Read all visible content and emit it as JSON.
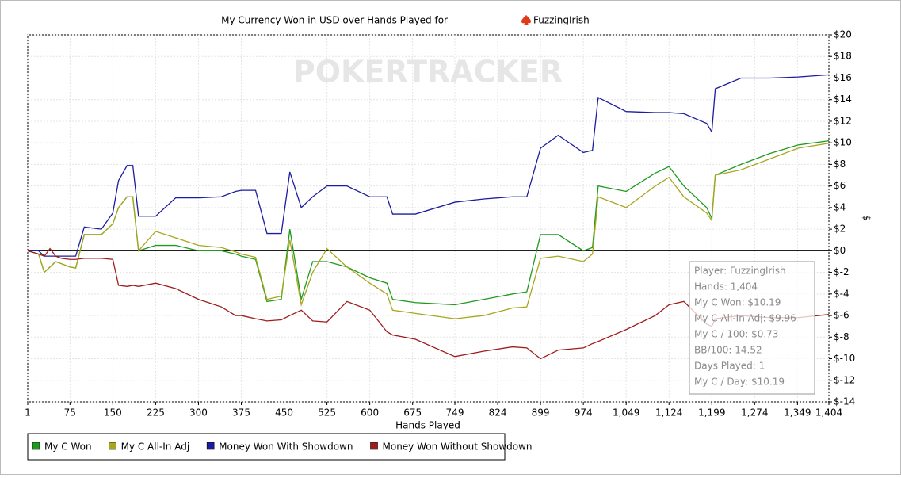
{
  "chart_data": {
    "type": "line",
    "title": "My Currency Won in USD over Hands Played for",
    "player": "FuzzingIrish",
    "watermark": "POKERTRACKER",
    "x_label": "Hands Played",
    "y_label": "$",
    "xlim": [
      1,
      1404
    ],
    "ylim": [
      -14,
      20
    ],
    "xticks": [
      1,
      75,
      150,
      225,
      300,
      375,
      450,
      525,
      600,
      675,
      749,
      824,
      899,
      974,
      {
        "value": 1049,
        "label": "1,049"
      },
      {
        "value": 1124,
        "label": "1,124"
      },
      {
        "value": 1199,
        "label": "1,199"
      },
      {
        "value": 1274,
        "label": "1,274"
      },
      {
        "value": 1349,
        "label": "1,349"
      },
      {
        "value": 1404,
        "label": "1,404"
      }
    ],
    "yticks": [
      {
        "value": 20,
        "label": "$20"
      },
      {
        "value": 18,
        "label": "$18"
      },
      {
        "value": 16,
        "label": "$16"
      },
      {
        "value": 14,
        "label": "$14"
      },
      {
        "value": 12,
        "label": "$12"
      },
      {
        "value": 10,
        "label": "$10"
      },
      {
        "value": 8,
        "label": "$8"
      },
      {
        "value": 6,
        "label": "$6"
      },
      {
        "value": 4,
        "label": "$4"
      },
      {
        "value": 2,
        "label": "$2"
      },
      {
        "value": 0,
        "label": "$0"
      },
      {
        "value": -2,
        "label": "$-2"
      },
      {
        "value": -4,
        "label": "$-4"
      },
      {
        "value": -6,
        "label": "$-6"
      },
      {
        "value": -8,
        "label": "$-8"
      },
      {
        "value": -10,
        "label": "$-10"
      },
      {
        "value": -12,
        "label": "$-12"
      },
      {
        "value": -14,
        "label": "$-14"
      }
    ],
    "grid": true,
    "x": [
      1,
      20,
      30,
      40,
      50,
      60,
      75,
      85,
      100,
      130,
      150,
      160,
      175,
      185,
      195,
      225,
      260,
      300,
      340,
      365,
      375,
      400,
      420,
      445,
      460,
      480,
      500,
      525,
      560,
      600,
      630,
      640,
      680,
      749,
      800,
      850,
      875,
      899,
      930,
      974,
      990,
      1000,
      1049,
      1100,
      1124,
      1150,
      1190,
      1199,
      1205,
      1250,
      1300,
      1350,
      1404
    ],
    "series": [
      {
        "name": "My C Won",
        "color": "#1e9a1e",
        "values": [
          0,
          -0.3,
          -2,
          -1.5,
          -1,
          -1.2,
          -1.5,
          -1.6,
          1.5,
          1.5,
          2.5,
          4,
          5,
          5,
          0,
          0.5,
          0.5,
          0,
          0,
          -0.3,
          -0.5,
          -0.8,
          -4.7,
          -4.5,
          2,
          -4.5,
          -1,
          -1,
          -1.5,
          -2.5,
          -3,
          -4.5,
          -4.8,
          -5,
          -4.5,
          -4,
          -3.8,
          1.5,
          1.5,
          0,
          0.3,
          6,
          5.5,
          7.2,
          7.8,
          6,
          4,
          3,
          7,
          8,
          9,
          9.8,
          10.19
        ]
      },
      {
        "name": "My C All-In Adj",
        "color": "#a8a61e",
        "values": [
          0,
          -0.3,
          -2,
          -1.5,
          -1,
          -1.2,
          -1.5,
          -1.6,
          1.5,
          1.5,
          2.5,
          4,
          5,
          5,
          0,
          1.8,
          1.2,
          0.5,
          0.3,
          -0.1,
          -0.3,
          -0.6,
          -4.5,
          -4.2,
          1,
          -5,
          -2,
          0.2,
          -1.5,
          -3,
          -4,
          -5.5,
          -5.8,
          -6.3,
          -6,
          -5.3,
          -5.2,
          -0.7,
          -0.5,
          -1,
          -0.3,
          5,
          4,
          6,
          6.8,
          5,
          3.5,
          2.8,
          7,
          7.5,
          8.5,
          9.5,
          9.96
        ]
      },
      {
        "name": "Money Won With Showdown",
        "color": "#1c1ca0",
        "values": [
          0,
          0,
          -0.5,
          -0.5,
          -0.5,
          -0.5,
          -0.5,
          -0.5,
          2.2,
          2,
          3.5,
          6.5,
          7.9,
          7.9,
          3.2,
          3.2,
          4.9,
          4.9,
          5,
          5.5,
          5.6,
          5.6,
          1.6,
          1.6,
          7.3,
          4,
          5,
          6,
          6,
          5,
          5,
          3.4,
          3.4,
          4.5,
          4.8,
          5,
          5,
          9.5,
          10.7,
          9.1,
          9.3,
          14.2,
          12.9,
          12.8,
          12.8,
          12.7,
          11.8,
          11,
          15,
          16,
          16,
          16.1,
          16.3
        ]
      },
      {
        "name": "Money Won Without Showdown",
        "color": "#a01c1c",
        "values": [
          0,
          -0.3,
          -0.5,
          0.2,
          -0.5,
          -0.7,
          -0.8,
          -0.8,
          -0.7,
          -0.7,
          -0.8,
          -3.2,
          -3.3,
          -3.2,
          -3.3,
          -3,
          -3.5,
          -4.5,
          -5.2,
          -6,
          -6,
          -6.3,
          -6.5,
          -6.4,
          -6,
          -5.5,
          -6.5,
          -6.6,
          -4.7,
          -5.5,
          -7.5,
          -7.8,
          -8.2,
          -9.8,
          -9.3,
          -8.9,
          -9,
          -10,
          -9.2,
          -9,
          -8.6,
          -8.4,
          -7.3,
          -6,
          -5,
          -4.7,
          -6.8,
          -7,
          -6.3,
          -6,
          -6.2,
          -6.2,
          -5.9
        ]
      }
    ],
    "info_box": [
      "Player: FuzzingIrish",
      "Hands: 1,404",
      "My C Won: $10.19",
      "My C All-In Adj: $9.96",
      "My C / 100: $0.73",
      "BB/100: 14.52",
      "Days Played: 1",
      "My C / Day: $10.19"
    ]
  }
}
